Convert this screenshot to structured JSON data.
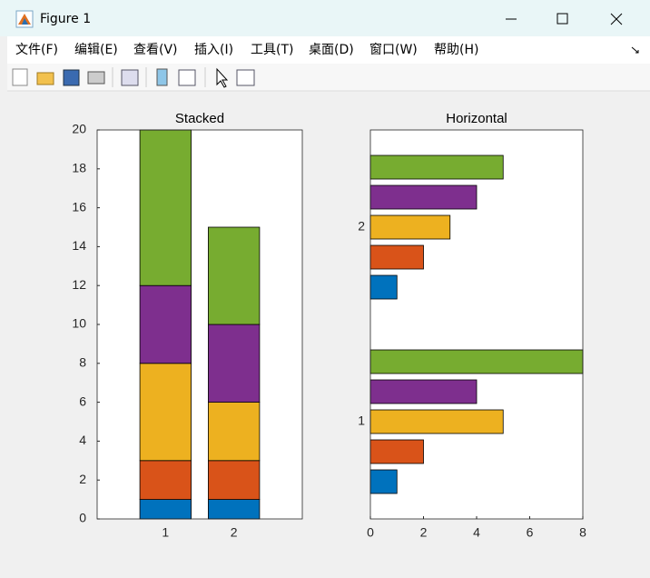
{
  "window": {
    "title": "Figure 1",
    "menu": [
      "文件(F)",
      "编辑(E)",
      "查看(V)",
      "插入(I)",
      "工具(T)",
      "桌面(D)",
      "窗口(W)",
      "帮助(H)"
    ]
  },
  "chart_data": [
    {
      "type": "bar",
      "stacked": true,
      "title": "Stacked",
      "categories": [
        "1",
        "2"
      ],
      "series": [
        {
          "color": "#0072BD",
          "values": [
            1,
            1
          ]
        },
        {
          "color": "#D95319",
          "values": [
            2,
            2
          ]
        },
        {
          "color": "#EDB120",
          "values": [
            5,
            3
          ]
        },
        {
          "color": "#7E2F8E",
          "values": [
            4,
            4
          ]
        },
        {
          "color": "#77AC30",
          "values": [
            8,
            5
          ]
        }
      ],
      "ylim": [
        0,
        20
      ],
      "yticks": [
        0,
        2,
        4,
        6,
        8,
        10,
        12,
        14,
        16,
        18,
        20
      ]
    },
    {
      "type": "barh",
      "stacked": false,
      "title": "Horizontal",
      "categories": [
        "1",
        "2"
      ],
      "series": [
        {
          "color": "#0072BD",
          "values": [
            1,
            1
          ]
        },
        {
          "color": "#D95319",
          "values": [
            2,
            2
          ]
        },
        {
          "color": "#EDB120",
          "values": [
            5,
            3
          ]
        },
        {
          "color": "#7E2F8E",
          "values": [
            4,
            4
          ]
        },
        {
          "color": "#77AC30",
          "values": [
            8,
            5
          ]
        }
      ],
      "xlim": [
        0,
        8
      ],
      "xticks": [
        0,
        2,
        4,
        6,
        8
      ]
    }
  ]
}
